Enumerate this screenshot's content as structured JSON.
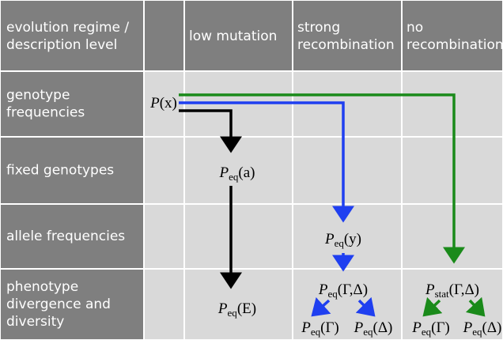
{
  "header": {
    "cells": [
      [
        "evolution regime /",
        "description level"
      ],
      [
        "low mutation"
      ],
      [
        "strong",
        "recombination"
      ],
      [
        "no",
        "recombination"
      ]
    ]
  },
  "rows": [
    {
      "label": [
        "genotype",
        "frequencies"
      ]
    },
    {
      "label": [
        "fixed genotypes"
      ]
    },
    {
      "label": [
        "allele frequencies"
      ]
    },
    {
      "label": [
        "phenotype",
        "divergence and",
        "diversity"
      ]
    }
  ],
  "nodes": [
    {
      "base": "P",
      "sub": "",
      "arg": "(x)"
    },
    {
      "base": "P",
      "sub": "eq",
      "arg": "(a)"
    },
    {
      "base": "P",
      "sub": "eq",
      "arg": "(y)"
    },
    {
      "base": "P",
      "sub": "eq",
      "arg": "(E)"
    },
    {
      "base": "P",
      "sub": "eq",
      "arg": "(Γ,Δ)"
    },
    {
      "base": "P",
      "sub": "stat",
      "arg": "(Γ,Δ)"
    },
    {
      "base": "P",
      "sub": "eq",
      "arg": "(Γ)"
    },
    {
      "base": "P",
      "sub": "eq",
      "arg": "(Δ)"
    },
    {
      "base": "P",
      "sub": "eq",
      "arg": "(Γ)"
    },
    {
      "base": "P",
      "sub": "eq",
      "arg": "(Δ)"
    }
  ]
}
